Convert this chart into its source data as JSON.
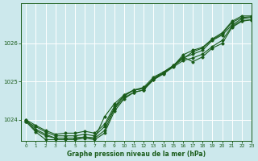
{
  "title": "Graphe pression niveau de la mer (hPa)",
  "bg_color": "#cce8ec",
  "grid_color": "#ffffff",
  "line_color": "#1a5c1a",
  "xlim": [
    -0.5,
    23
  ],
  "ylim": [
    1023.45,
    1027.05
  ],
  "yticks": [
    1024,
    1025,
    1026
  ],
  "xticks": [
    0,
    1,
    2,
    3,
    4,
    5,
    6,
    7,
    8,
    9,
    10,
    11,
    12,
    13,
    14,
    15,
    16,
    17,
    18,
    19,
    20,
    21,
    22,
    23
  ],
  "series": [
    [
      1023.95,
      1023.82,
      1023.68,
      1023.58,
      1023.58,
      1023.58,
      1023.62,
      1023.58,
      1023.82,
      1024.3,
      1024.65,
      1024.78,
      1024.82,
      1025.05,
      1025.2,
      1025.38,
      1025.55,
      1025.62,
      1025.72,
      1025.92,
      1026.08,
      1026.45,
      1026.6,
      1026.62
    ],
    [
      1024.0,
      1023.85,
      1023.72,
      1023.62,
      1023.65,
      1023.65,
      1023.7,
      1023.65,
      1023.88,
      1024.35,
      1024.62,
      1024.78,
      1024.82,
      1025.08,
      1025.22,
      1025.42,
      1025.62,
      1025.72,
      1025.82,
      1026.08,
      1026.22,
      1026.48,
      1026.65,
      1026.68
    ],
    [
      1023.95,
      1023.72,
      1023.58,
      1023.52,
      1023.52,
      1023.52,
      1023.55,
      1023.52,
      1023.72,
      1024.28,
      1024.58,
      1024.72,
      1024.78,
      1025.05,
      1025.22,
      1025.4,
      1025.6,
      1025.78,
      1025.88,
      1026.1,
      1026.25,
      1026.55,
      1026.68,
      1026.7
    ],
    [
      1024.0,
      1023.75,
      1023.62,
      1023.52,
      1023.52,
      1023.52,
      1023.55,
      1023.52,
      1024.08,
      1024.42,
      1024.65,
      1024.78,
      1024.85,
      1025.12,
      1025.25,
      1025.42,
      1025.65,
      1025.52,
      1025.65,
      1025.88,
      1026.0,
      1026.42,
      1026.58,
      1026.62
    ],
    [
      1023.95,
      1023.68,
      1023.48,
      1023.48,
      1023.48,
      1023.48,
      1023.52,
      1023.48,
      1023.65,
      1024.22,
      1024.55,
      1024.72,
      1024.78,
      1025.08,
      1025.25,
      1025.4,
      1025.7,
      1025.82,
      1025.9,
      1026.12,
      1026.28,
      1026.58,
      1026.72,
      1026.72
    ]
  ]
}
